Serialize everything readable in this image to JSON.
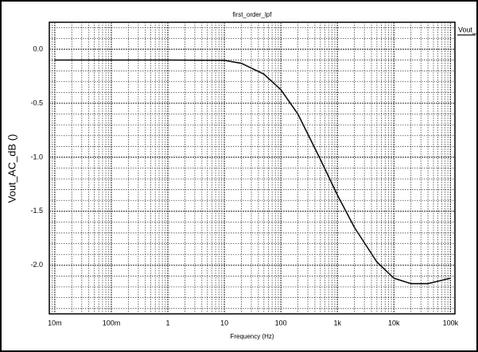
{
  "chart_data": {
    "type": "line",
    "title": "first_order_lpf",
    "x_label": "Frequency (Hz)",
    "y_label": "Vout_AC_dB ()",
    "log_x": true,
    "grid": true,
    "minor_grid": true,
    "legend": "top-right",
    "x": [
      0.01,
      0.1,
      1,
      10,
      20,
      50,
      100,
      200,
      500,
      1000,
      2000,
      5000,
      10000,
      20000,
      40000,
      100000
    ],
    "series": [
      {
        "name": "Vout_AC_dB",
        "color": "#111111",
        "values": [
          -0.1,
          -0.1,
          -0.1,
          -0.103,
          -0.13,
          -0.23,
          -0.375,
          -0.6,
          -1.02,
          -1.35,
          -1.65,
          -1.97,
          -2.12,
          -2.17,
          -2.17,
          -2.12
        ]
      }
    ],
    "xlim": [
      0.008,
      120000
    ],
    "ylim": [
      -2.45,
      0.25
    ],
    "xticks": [
      {
        "value": 0.01,
        "label": "10m"
      },
      {
        "value": 0.1,
        "label": "100m"
      },
      1,
      10,
      100,
      {
        "value": 1000,
        "label": "1k"
      },
      {
        "value": 10000,
        "label": "10k"
      },
      {
        "value": 100000,
        "label": "100k"
      }
    ],
    "yticks": [
      {
        "value": 0,
        "label": "0.0"
      },
      -0.5,
      {
        "value": -1,
        "label": "-1.0"
      },
      -1.5,
      {
        "value": -2,
        "label": "-2.0"
      }
    ]
  }
}
